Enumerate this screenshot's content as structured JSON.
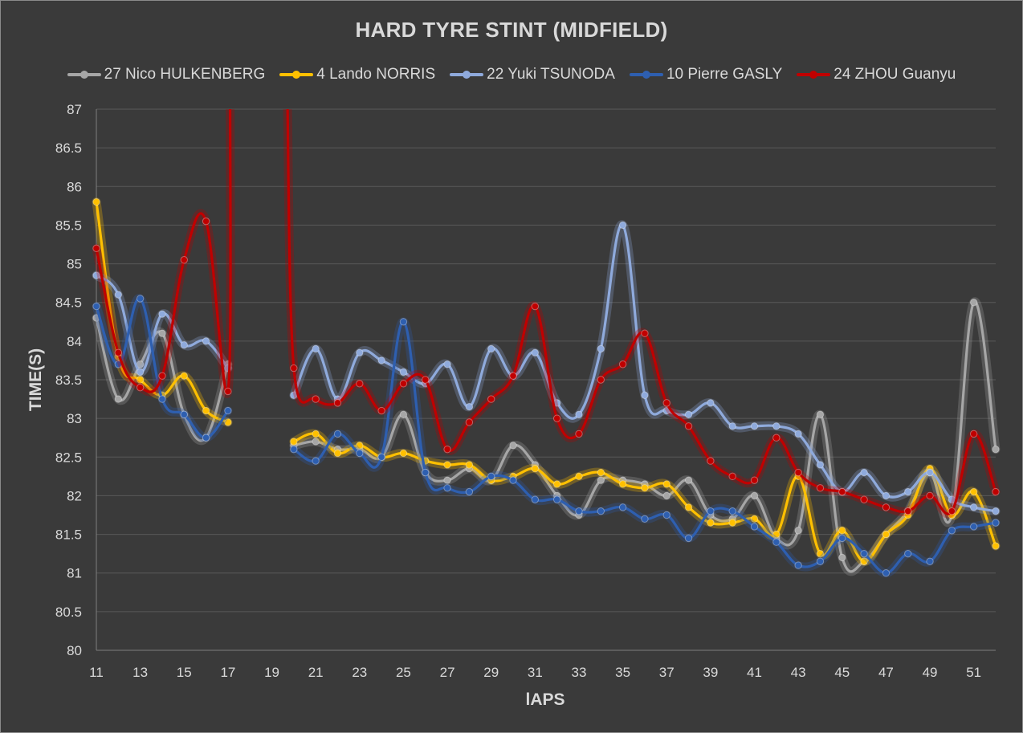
{
  "chart_data": {
    "type": "line",
    "title": "HARD TYRE STINT (MIDFIELD)",
    "xlabel": "lAPS",
    "ylabel": "TIME(S)",
    "xlim": [
      11,
      52
    ],
    "ylim": [
      80,
      87
    ],
    "y_ticks": [
      "80",
      "80.5",
      "81",
      "81.5",
      "82",
      "82.5",
      "83",
      "83.5",
      "84",
      "84.5",
      "85",
      "85.5",
      "86",
      "86.5",
      "87"
    ],
    "x_ticks": [
      "11",
      "13",
      "15",
      "17",
      "19",
      "21",
      "23",
      "25",
      "27",
      "29",
      "31",
      "33",
      "35",
      "37",
      "39",
      "41",
      "43",
      "45",
      "47",
      "49",
      "51"
    ],
    "grid": "horizontal",
    "legend_position": "top",
    "series": [
      {
        "name": "27 Nico HULKENBERG",
        "color": "#a6a6a6",
        "points": [
          [
            11,
            84.3
          ],
          [
            12,
            83.25
          ],
          [
            13,
            83.7
          ],
          [
            14,
            84.1
          ],
          [
            15,
            83.05
          ],
          [
            16,
            82.75
          ],
          [
            17,
            83.7
          ],
          [
            20,
            82.65
          ],
          [
            21,
            82.7
          ],
          [
            22,
            82.6
          ],
          [
            23,
            82.6
          ],
          [
            24,
            82.5
          ],
          [
            25,
            83.05
          ],
          [
            26,
            82.3
          ],
          [
            27,
            82.2
          ],
          [
            28,
            82.35
          ],
          [
            29,
            82.2
          ],
          [
            30,
            82.65
          ],
          [
            31,
            82.4
          ],
          [
            32,
            82.0
          ],
          [
            33,
            81.75
          ],
          [
            34,
            82.2
          ],
          [
            35,
            82.2
          ],
          [
            36,
            82.15
          ],
          [
            37,
            82.0
          ],
          [
            38,
            82.2
          ],
          [
            39,
            81.75
          ],
          [
            40,
            81.7
          ],
          [
            41,
            82.0
          ],
          [
            42,
            81.45
          ],
          [
            43,
            81.55
          ],
          [
            44,
            83.05
          ],
          [
            45,
            81.2
          ],
          [
            46,
            81.15
          ],
          [
            47,
            81.5
          ],
          [
            48,
            81.8
          ],
          [
            49,
            82.3
          ],
          [
            50,
            81.75
          ],
          [
            51,
            84.5
          ],
          [
            52,
            82.6
          ]
        ]
      },
      {
        "name": "4 Lando NORRIS",
        "color": "#ffc000",
        "points": [
          [
            11,
            85.8
          ],
          [
            12,
            83.8
          ],
          [
            13,
            83.5
          ],
          [
            14,
            83.3
          ],
          [
            15,
            83.55
          ],
          [
            16,
            83.1
          ],
          [
            17,
            82.95
          ],
          [
            20,
            82.7
          ],
          [
            21,
            82.8
          ],
          [
            22,
            82.55
          ],
          [
            23,
            82.65
          ],
          [
            24,
            82.5
          ],
          [
            25,
            82.55
          ],
          [
            26,
            82.45
          ],
          [
            27,
            82.4
          ],
          [
            28,
            82.4
          ],
          [
            29,
            82.2
          ],
          [
            30,
            82.25
          ],
          [
            31,
            82.35
          ],
          [
            32,
            82.15
          ],
          [
            33,
            82.25
          ],
          [
            34,
            82.3
          ],
          [
            35,
            82.15
          ],
          [
            36,
            82.1
          ],
          [
            37,
            82.15
          ],
          [
            38,
            81.85
          ],
          [
            39,
            81.65
          ],
          [
            40,
            81.65
          ],
          [
            41,
            81.7
          ],
          [
            42,
            81.5
          ],
          [
            43,
            82.25
          ],
          [
            44,
            81.25
          ],
          [
            45,
            81.55
          ],
          [
            46,
            81.15
          ],
          [
            47,
            81.5
          ],
          [
            48,
            81.75
          ],
          [
            49,
            82.35
          ],
          [
            50,
            81.75
          ],
          [
            51,
            82.05
          ],
          [
            52,
            81.35
          ]
        ]
      },
      {
        "name": "22 Yuki TSUNODA",
        "color": "#8faadc",
        "points": [
          [
            11,
            84.85
          ],
          [
            12,
            84.6
          ],
          [
            13,
            83.6
          ],
          [
            14,
            84.35
          ],
          [
            15,
            83.95
          ],
          [
            16,
            84.0
          ],
          [
            17,
            83.65
          ],
          [
            20,
            83.3
          ],
          [
            21,
            83.9
          ],
          [
            22,
            83.25
          ],
          [
            23,
            83.85
          ],
          [
            24,
            83.75
          ],
          [
            25,
            83.6
          ],
          [
            26,
            83.45
          ],
          [
            27,
            83.7
          ],
          [
            28,
            83.15
          ],
          [
            29,
            83.9
          ],
          [
            30,
            83.55
          ],
          [
            31,
            83.85
          ],
          [
            32,
            83.2
          ],
          [
            33,
            83.05
          ],
          [
            34,
            83.9
          ],
          [
            35,
            85.5
          ],
          [
            36,
            83.3
          ],
          [
            37,
            83.1
          ],
          [
            38,
            83.05
          ],
          [
            39,
            83.2
          ],
          [
            40,
            82.9
          ],
          [
            41,
            82.9
          ],
          [
            42,
            82.9
          ],
          [
            43,
            82.8
          ],
          [
            44,
            82.4
          ],
          [
            45,
            82.05
          ],
          [
            46,
            82.3
          ],
          [
            47,
            82.0
          ],
          [
            48,
            82.05
          ],
          [
            49,
            82.3
          ],
          [
            50,
            81.95
          ],
          [
            51,
            81.85
          ],
          [
            52,
            81.8
          ]
        ]
      },
      {
        "name": "10 Pierre GASLY",
        "color": "#2e5fb0",
        "points": [
          [
            11,
            84.45
          ],
          [
            12,
            83.7
          ],
          [
            13,
            84.55
          ],
          [
            14,
            83.25
          ],
          [
            15,
            83.05
          ],
          [
            16,
            82.75
          ],
          [
            17,
            83.1
          ],
          [
            20,
            82.6
          ],
          [
            21,
            82.45
          ],
          [
            22,
            82.8
          ],
          [
            23,
            82.55
          ],
          [
            24,
            82.5
          ],
          [
            25,
            84.25
          ],
          [
            26,
            82.3
          ],
          [
            27,
            82.1
          ],
          [
            28,
            82.05
          ],
          [
            29,
            82.25
          ],
          [
            30,
            82.2
          ],
          [
            31,
            81.95
          ],
          [
            32,
            81.95
          ],
          [
            33,
            81.8
          ],
          [
            34,
            81.8
          ],
          [
            35,
            81.85
          ],
          [
            36,
            81.7
          ],
          [
            37,
            81.75
          ],
          [
            38,
            81.45
          ],
          [
            39,
            81.8
          ],
          [
            40,
            81.8
          ],
          [
            41,
            81.6
          ],
          [
            42,
            81.4
          ],
          [
            43,
            81.1
          ],
          [
            44,
            81.15
          ],
          [
            45,
            81.45
          ],
          [
            46,
            81.25
          ],
          [
            47,
            81.0
          ],
          [
            48,
            81.25
          ],
          [
            49,
            81.15
          ],
          [
            50,
            81.55
          ],
          [
            51,
            81.6
          ],
          [
            52,
            81.65
          ]
        ]
      },
      {
        "name": "24 ZHOU Guanyu",
        "color": "#c00000",
        "points": [
          [
            11,
            85.2
          ],
          [
            12,
            83.85
          ],
          [
            13,
            83.4
          ],
          [
            14,
            83.55
          ],
          [
            15,
            85.05
          ],
          [
            16,
            85.55
          ],
          [
            17,
            83.35
          ],
          [
            17.1,
            87.3
          ],
          [
            19.7,
            87.3
          ],
          [
            20,
            83.65
          ],
          [
            21,
            83.25
          ],
          [
            22,
            83.2
          ],
          [
            23,
            83.45
          ],
          [
            24,
            83.1
          ],
          [
            25,
            83.45
          ],
          [
            26,
            83.5
          ],
          [
            27,
            82.6
          ],
          [
            28,
            82.95
          ],
          [
            29,
            83.25
          ],
          [
            30,
            83.55
          ],
          [
            31,
            84.45
          ],
          [
            32,
            83.0
          ],
          [
            33,
            82.8
          ],
          [
            34,
            83.5
          ],
          [
            35,
            83.7
          ],
          [
            36,
            84.1
          ],
          [
            37,
            83.2
          ],
          [
            38,
            82.9
          ],
          [
            39,
            82.45
          ],
          [
            40,
            82.25
          ],
          [
            41,
            82.2
          ],
          [
            42,
            82.75
          ],
          [
            43,
            82.3
          ],
          [
            44,
            82.1
          ],
          [
            45,
            82.05
          ],
          [
            46,
            81.95
          ],
          [
            47,
            81.85
          ],
          [
            48,
            81.8
          ],
          [
            49,
            82.0
          ],
          [
            50,
            81.8
          ],
          [
            51,
            82.8
          ],
          [
            52,
            82.05
          ]
        ]
      }
    ]
  }
}
